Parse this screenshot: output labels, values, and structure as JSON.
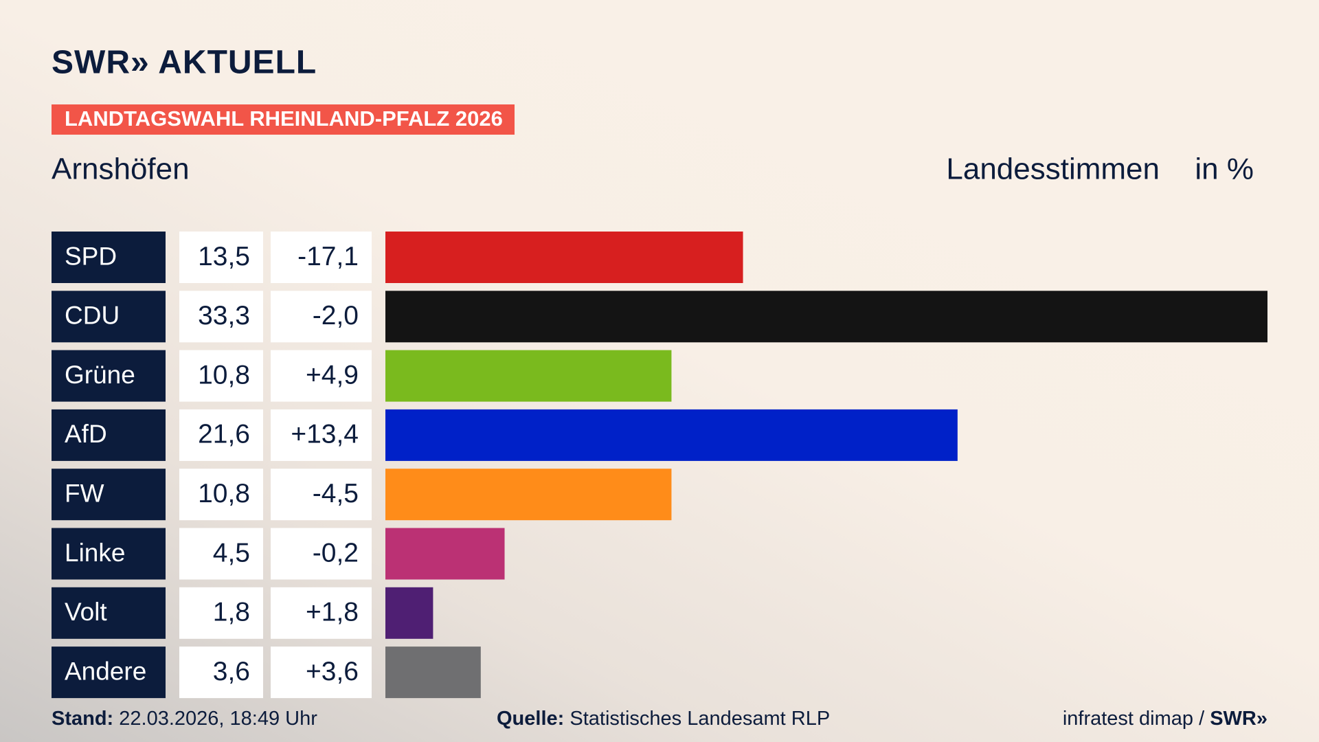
{
  "chart_data": {
    "type": "bar",
    "brand": "SWR» AKTUELL",
    "banner": "LANDTAGSWAHL RHEINLAND-PFALZ 2026",
    "location": "Arnshöfen",
    "measure": "Landesstimmen",
    "unit": "in %",
    "categories": [
      "SPD",
      "CDU",
      "Grüne",
      "AfD",
      "FW",
      "Linke",
      "Volt",
      "Andere"
    ],
    "colors": [
      "#d71f1f",
      "#141414",
      "#7aba1e",
      "#0021c8",
      "#ff8c19",
      "#bb3174",
      "#4f1f73",
      "#6f6f71"
    ],
    "values": [
      13.5,
      33.3,
      10.8,
      21.6,
      10.8,
      4.5,
      1.8,
      3.6
    ],
    "value_labels": [
      "13,5",
      "33,3",
      "10,8",
      "21,6",
      "10,8",
      "4,5",
      "1,8",
      "3,6"
    ],
    "change": {
      "values": [
        -17.1,
        -2.0,
        4.9,
        13.4,
        -4.5,
        -0.2,
        1.8,
        3.6
      ],
      "value_labels": [
        "-17,1",
        "-2,0",
        "+4,9",
        "+13,4",
        "-4,5",
        "-0,2",
        "+1,8",
        "+3,6"
      ]
    },
    "footer": {
      "stand_label": "Stand:",
      "stand": "22.03.2026, 18:49 Uhr",
      "source_label": "Quelle:",
      "source": "Statistisches Landesamt RLP",
      "credit": "infratest dimap /",
      "credit_brand": "SWR»"
    }
  }
}
